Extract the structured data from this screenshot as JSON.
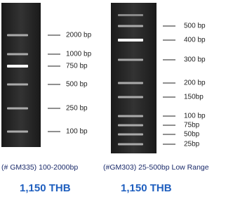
{
  "ladders": [
    {
      "bands": [
        "2000 bp",
        "1000 bp",
        "750 bp",
        "500 bp",
        "250 bp",
        "100 bp"
      ],
      "caption": "(# GM335) 100-2000bp",
      "price": "1,150 THB"
    },
    {
      "bands": [
        "500 bp",
        "400 bp",
        "300 bp",
        "200 bp",
        "150bp",
        "100 bp",
        "75bp",
        "50bp",
        "25bp"
      ],
      "caption": "(#GM303) 25-500bp Low Range",
      "price": "1,150 THB"
    }
  ]
}
